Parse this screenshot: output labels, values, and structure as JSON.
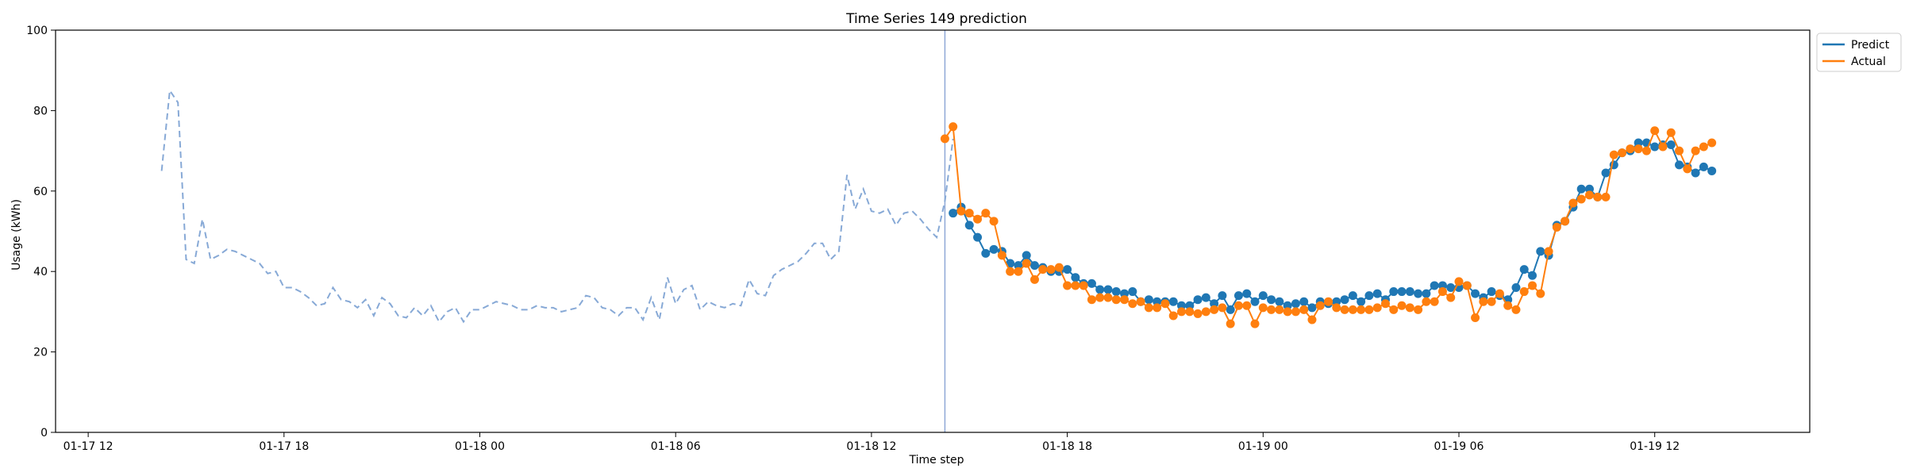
{
  "chart_data": {
    "type": "line",
    "title": "Time Series 149 prediction",
    "xlabel": "Time step",
    "ylabel": "Usage (kWh)",
    "ylim": [
      0,
      100
    ],
    "xlim": [
      "2024-01-17 11:00",
      "2024-01-19 16:45"
    ],
    "x_ticks": [
      {
        "t": "2024-01-17 12:00",
        "label": "01-17 12"
      },
      {
        "t": "2024-01-17 18:00",
        "label": "01-17 18"
      },
      {
        "t": "2024-01-18 00:00",
        "label": "01-18 00"
      },
      {
        "t": "2024-01-18 06:00",
        "label": "01-18 06"
      },
      {
        "t": "2024-01-18 12:00",
        "label": "01-18 12"
      },
      {
        "t": "2024-01-18 18:00",
        "label": "01-18 18"
      },
      {
        "t": "2024-01-19 00:00",
        "label": "01-19 00"
      },
      {
        "t": "2024-01-19 06:00",
        "label": "01-19 06"
      },
      {
        "t": "2024-01-19 12:00",
        "label": "01-19 12"
      }
    ],
    "y_ticks": [
      0,
      20,
      40,
      60,
      80,
      100
    ],
    "grid": false,
    "legend": "top-right",
    "split_time": "2024-01-18 14:15",
    "series": [
      {
        "role": "history",
        "style": "dashed",
        "color": "#87a9d6",
        "start": "2024-01-17 14:15",
        "step_minutes": 15,
        "values": [
          65,
          85,
          82,
          43,
          42,
          53,
          43,
          44,
          45.5,
          45,
          44,
          43,
          42,
          39.5,
          40,
          36,
          36,
          35,
          33.5,
          31.5,
          32,
          36,
          33,
          32.5,
          31,
          33,
          29,
          33.5,
          32,
          29,
          28.5,
          31,
          29,
          31.5,
          27.5,
          30,
          31,
          27.5,
          30.5,
          30.5,
          31.5,
          32.5,
          32,
          31.5,
          30.5,
          30.5,
          31.5,
          31,
          31,
          30,
          30.5,
          31,
          34,
          33.5,
          31,
          30.5,
          29,
          31,
          31,
          28,
          33.5,
          28,
          38.5,
          32,
          35.5,
          36.5,
          30.5,
          32.5,
          31.5,
          31,
          32,
          31.5,
          38,
          34.5,
          34,
          39,
          40.5,
          41.5,
          42.5,
          44.5,
          47,
          47,
          43,
          45,
          64,
          55.5,
          60.5,
          55,
          54.5,
          55.5,
          51.5,
          54.5,
          55,
          53,
          50.5,
          48.5,
          57.5,
          73
        ]
      },
      {
        "name": "Predict",
        "role": "prediction",
        "color": "#1f77b4",
        "start": "2024-01-18 14:30",
        "step_minutes": 15,
        "values": [
          54.5,
          56,
          51.5,
          48.5,
          44.5,
          45.5,
          45,
          42,
          41.5,
          44,
          41.5,
          41,
          40,
          40,
          40.5,
          38.5,
          37,
          37,
          35.5,
          35.5,
          35,
          34.5,
          35,
          32.5,
          33,
          32.5,
          32.5,
          32.5,
          31.5,
          31.5,
          33,
          33.5,
          32,
          34,
          30.5,
          34,
          34.5,
          32.5,
          34,
          33,
          32.5,
          31.5,
          32,
          32.5,
          31,
          32.5,
          32,
          32.5,
          33,
          34,
          32.5,
          34,
          34.5,
          33,
          35,
          35,
          35,
          34.5,
          34.5,
          36.5,
          36.5,
          36,
          36,
          36.5,
          34.5,
          33.5,
          35,
          34,
          33,
          36,
          40.5,
          39,
          45,
          44,
          51.5,
          52.5,
          56,
          60.5,
          60.5,
          58.5,
          64.5,
          66.5,
          69.5,
          70,
          72,
          72,
          71,
          71.5,
          71.5,
          66.5,
          66,
          64.5,
          66,
          65
        ]
      },
      {
        "name": "Actual",
        "role": "actual",
        "color": "#ff7f0e",
        "start": "2024-01-18 14:15",
        "step_minutes": 15,
        "values": [
          73,
          76,
          55,
          54.5,
          53,
          54.5,
          52.5,
          44,
          40,
          40,
          42,
          38,
          40.5,
          40.5,
          41,
          36.5,
          36.5,
          36.5,
          33,
          33.5,
          33.5,
          33,
          33,
          32,
          32.5,
          31,
          31,
          32,
          29,
          30,
          30,
          29.5,
          30,
          30.5,
          31,
          27,
          31.5,
          31.5,
          27,
          31,
          30.5,
          30.5,
          30,
          30,
          30.5,
          28,
          31.5,
          32.5,
          31,
          30.5,
          30.5,
          30.5,
          30.5,
          31,
          32,
          30.5,
          31.5,
          31,
          30.5,
          32.5,
          32.5,
          35,
          33.5,
          37.5,
          36.5,
          28.5,
          32.5,
          32.5,
          34.5,
          31.5,
          30.5,
          35,
          36.5,
          34.5,
          45,
          51,
          52.5,
          57,
          58,
          59,
          58.5,
          58.5,
          69,
          69.5,
          70.5,
          70.5,
          70,
          75,
          71,
          74.5,
          70,
          65.5,
          70,
          71,
          72
        ]
      }
    ]
  }
}
